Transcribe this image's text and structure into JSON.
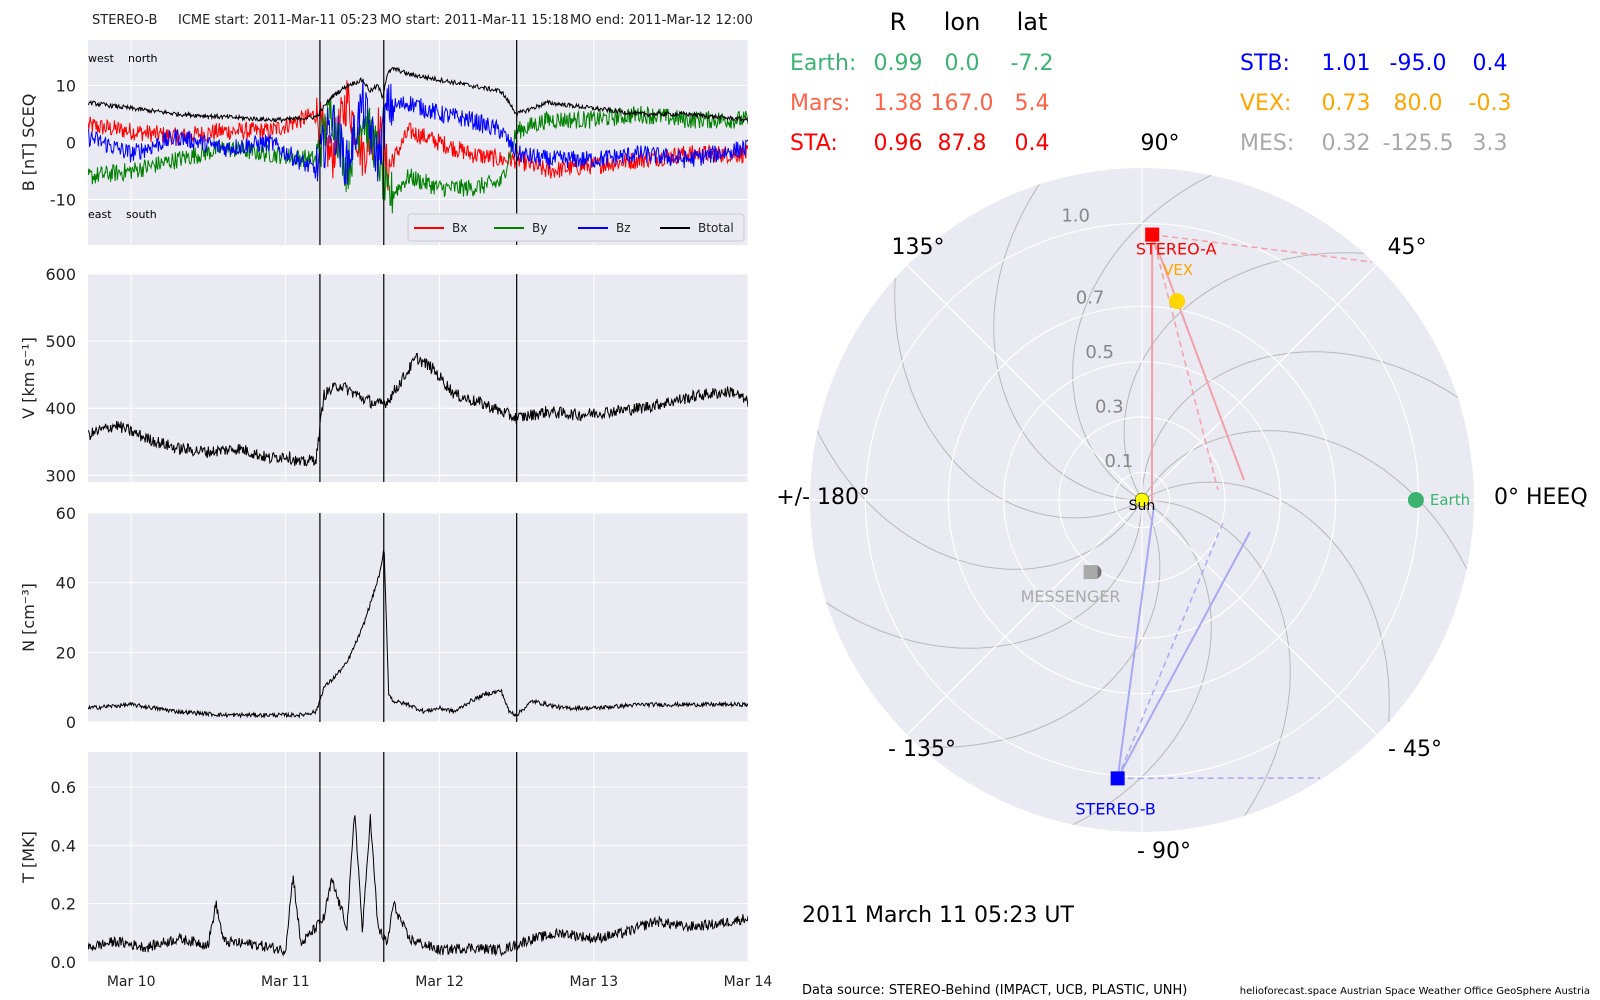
{
  "header": {
    "spacecraft": "STEREO-B",
    "icme_start": "ICME start: 2011-Mar-11 05:23",
    "mo_start": "MO start: 2011-Mar-11 15:18",
    "mo_end": "MO end: 2011-Mar-12 12:00"
  },
  "colors": {
    "panel_bg": "#eaeaf2",
    "bx": "#ff0000",
    "by": "#008000",
    "bz": "#0000ff",
    "btotal": "#000000",
    "earth": "#3cb371",
    "mars": "#ff6347",
    "sta": "#ff0000",
    "stb": "#0000ff",
    "vex": "#ffa500",
    "mes": "#a9a9a9",
    "sun": "#ffff00"
  },
  "chart_data": [
    {
      "type": "line",
      "panel": "B",
      "ylabel": "B [nT] SCEQ",
      "ylim": [
        -18,
        18
      ],
      "yticks": [
        -10,
        0,
        10
      ],
      "corner_labels": {
        "top_left_1": "west",
        "top_left_2": "north",
        "bottom_left_1": "east",
        "bottom_left_2": "south"
      },
      "legend": [
        "Bx",
        "By",
        "Bz",
        "Btotal"
      ],
      "legend_placement": "lower-right",
      "series": [
        {
          "name": "Btotal",
          "x": [
            9.72,
            10.0,
            10.3,
            10.6,
            10.9,
            11.0,
            11.2,
            11.3,
            11.4,
            11.5,
            11.55,
            11.6,
            11.63,
            11.66,
            11.7,
            11.8,
            12.0,
            12.2,
            12.4,
            12.5,
            12.7,
            13.0,
            13.3,
            13.6,
            13.99
          ],
          "y": [
            7,
            6,
            5,
            4.5,
            4,
            4,
            4.5,
            8,
            10,
            11,
            9,
            10,
            8,
            12,
            13,
            12,
            11,
            10,
            9,
            5,
            7,
            6,
            5,
            5,
            4
          ]
        },
        {
          "name": "Bx",
          "x": [
            9.72,
            10.0,
            10.3,
            10.6,
            10.9,
            11.2,
            11.3,
            11.4,
            11.5,
            11.6,
            11.66,
            11.8,
            12.0,
            12.2,
            12.4,
            12.5,
            12.7,
            13.0,
            13.3,
            13.6,
            13.99
          ],
          "y": [
            3,
            2,
            1,
            2,
            2,
            5,
            -3,
            8,
            -2,
            3,
            -5,
            2,
            0,
            -2,
            -3,
            -3,
            -5,
            -4,
            -3,
            -2,
            -2
          ]
        },
        {
          "name": "By",
          "x": [
            9.72,
            10.0,
            10.3,
            10.6,
            10.9,
            11.2,
            11.3,
            11.4,
            11.5,
            11.6,
            11.66,
            11.8,
            12.0,
            12.2,
            12.4,
            12.5,
            12.7,
            13.0,
            13.3,
            13.6,
            13.99
          ],
          "y": [
            -6,
            -5,
            -3,
            -1,
            -2,
            -3,
            6,
            -5,
            5,
            -2,
            -10,
            -6,
            -8,
            -8,
            -7,
            2,
            4,
            4,
            5,
            4,
            4
          ]
        },
        {
          "name": "Bz",
          "x": [
            9.72,
            10.0,
            10.3,
            10.6,
            10.9,
            11.2,
            11.3,
            11.4,
            11.5,
            11.6,
            11.66,
            11.8,
            12.0,
            12.2,
            12.4,
            12.5,
            12.7,
            13.0,
            13.3,
            13.6,
            13.99
          ],
          "y": [
            1,
            -2,
            1,
            -1,
            0,
            -5,
            4,
            -4,
            7,
            -3,
            6,
            7,
            5,
            4,
            2,
            -2,
            -3,
            -3,
            -2,
            -3,
            -1
          ]
        }
      ]
    },
    {
      "type": "line",
      "panel": "V",
      "ylabel": "V [km s⁻¹]",
      "ylim": [
        290,
        600
      ],
      "yticks": [
        300,
        400,
        500,
        600
      ],
      "series": [
        {
          "name": "V",
          "x": [
            9.72,
            9.9,
            10.1,
            10.3,
            10.5,
            10.7,
            10.9,
            11.0,
            11.1,
            11.2,
            11.25,
            11.35,
            11.5,
            11.6,
            11.66,
            11.75,
            11.85,
            11.95,
            12.1,
            12.3,
            12.5,
            12.7,
            12.9,
            13.1,
            13.3,
            13.5,
            13.7,
            13.9,
            13.99
          ],
          "y": [
            360,
            375,
            355,
            340,
            335,
            340,
            325,
            330,
            318,
            325,
            420,
            435,
            415,
            405,
            410,
            440,
            475,
            460,
            420,
            405,
            385,
            395,
            390,
            395,
            400,
            410,
            420,
            425,
            410
          ]
        }
      ]
    },
    {
      "type": "line",
      "panel": "N",
      "ylabel": "N [cm⁻³]",
      "ylim": [
        0,
        60
      ],
      "yticks": [
        0,
        20,
        40,
        60
      ],
      "series": [
        {
          "name": "N",
          "x": [
            9.72,
            10.0,
            10.3,
            10.6,
            10.9,
            11.1,
            11.2,
            11.25,
            11.3,
            11.4,
            11.5,
            11.58,
            11.62,
            11.64,
            11.67,
            11.7,
            11.8,
            11.9,
            12.0,
            12.1,
            12.2,
            12.3,
            12.4,
            12.45,
            12.5,
            12.6,
            12.8,
            13.0,
            13.3,
            13.6,
            13.99
          ],
          "y": [
            4,
            5,
            3,
            2,
            2,
            2,
            3,
            10,
            12,
            17,
            27,
            38,
            44,
            50,
            8,
            6,
            5,
            3,
            4,
            3,
            6,
            8,
            9,
            3,
            2,
            6,
            4,
            4,
            5,
            5,
            5
          ]
        }
      ]
    },
    {
      "type": "line",
      "panel": "T",
      "ylabel": "T [MK]",
      "ylim": [
        0,
        0.72
      ],
      "yticks": [
        0.0,
        0.2,
        0.4,
        0.6
      ],
      "series": [
        {
          "name": "T",
          "x": [
            9.72,
            9.9,
            10.1,
            10.3,
            10.5,
            10.55,
            10.6,
            10.8,
            11.0,
            11.05,
            11.1,
            11.25,
            11.3,
            11.4,
            11.45,
            11.5,
            11.55,
            11.6,
            11.66,
            11.7,
            11.8,
            12.0,
            12.2,
            12.4,
            12.5,
            12.6,
            12.8,
            13.0,
            13.2,
            13.4,
            13.6,
            13.8,
            13.99
          ],
          "y": [
            0.05,
            0.07,
            0.05,
            0.08,
            0.06,
            0.2,
            0.07,
            0.06,
            0.04,
            0.3,
            0.06,
            0.15,
            0.28,
            0.12,
            0.52,
            0.1,
            0.5,
            0.12,
            0.06,
            0.2,
            0.08,
            0.04,
            0.05,
            0.04,
            0.06,
            0.08,
            0.1,
            0.08,
            0.1,
            0.14,
            0.12,
            0.13,
            0.15
          ]
        }
      ]
    }
  ],
  "timeseries_axes": {
    "xlim": [
      9.72,
      14.0
    ],
    "xtick_values": [
      10,
      11,
      12,
      13,
      14
    ],
    "xtick_labels": [
      "Mar 10",
      "Mar 11",
      "Mar 12",
      "Mar 13",
      "Mar 14"
    ],
    "event_lines": [
      11.224,
      11.638,
      12.5
    ]
  },
  "table": {
    "headers": [
      "R",
      "lon",
      "lat"
    ],
    "rows_left": [
      {
        "name": "Earth:",
        "r": "0.99",
        "lon": "0.0",
        "lat": "-7.2",
        "color": "#3cb371"
      },
      {
        "name": "Mars:",
        "r": "1.38",
        "lon": "167.0",
        "lat": "5.4",
        "color": "#ff6347"
      },
      {
        "name": "STA:",
        "r": "0.96",
        "lon": "87.8",
        "lat": "0.4",
        "color": "#ff0000"
      }
    ],
    "rows_right": [
      {
        "name": "STB:",
        "r": "1.01",
        "lon": "-95.0",
        "lat": "0.4",
        "color": "#0000ff"
      },
      {
        "name": "VEX:",
        "r": "0.73",
        "lon": "80.0",
        "lat": "-0.3",
        "color": "#ffa500"
      },
      {
        "name": "MES:",
        "r": "0.32",
        "lon": "-125.5",
        "lat": "3.3",
        "color": "#a9a9a9"
      }
    ]
  },
  "polar": {
    "angle_labels": {
      "a90": "90°",
      "a45": "45°",
      "a0": "0° HEEQ",
      "am45": "- 45°",
      "am90": "- 90°",
      "am135": "- 135°",
      "a180": "+/- 180°",
      "a135": "135°"
    },
    "radial_ticks": [
      0.1,
      0.3,
      0.5,
      0.7,
      1.0
    ],
    "radial_labels": [
      "0.1",
      "0.3",
      "0.5",
      "0.7",
      "1.0"
    ],
    "rmax": 1.2,
    "bodies": [
      {
        "name": "Sun",
        "label": "Sun",
        "r": 0,
        "lon": 0,
        "color": "#ffff00"
      },
      {
        "name": "Earth",
        "label": "Earth",
        "r": 0.99,
        "lon": 0.0,
        "color": "#3cb371"
      },
      {
        "name": "STEREO-A",
        "label": "STEREO-A",
        "r": 0.96,
        "lon": 87.8,
        "color": "#ff0000"
      },
      {
        "name": "STEREO-B",
        "label": "STEREO-B",
        "r": 1.01,
        "lon": -95.0,
        "color": "#0000ff"
      },
      {
        "name": "VEX",
        "label": "VEX",
        "r": 0.73,
        "lon": 80.0,
        "color": "#ffd700"
      },
      {
        "name": "MESSENGER",
        "label": "MESSENGER",
        "r": 0.32,
        "lon": -125.5,
        "color": "#a9a9a9"
      }
    ],
    "date": "2011 March 11  05:23 UT"
  },
  "footer": {
    "source": "Data source: STEREO-Behind (IMPACT, UCB, PLASTIC, UNH)",
    "credits": "helioforecast.space   Austrian Space Weather Office   GeoSphere Austria"
  }
}
